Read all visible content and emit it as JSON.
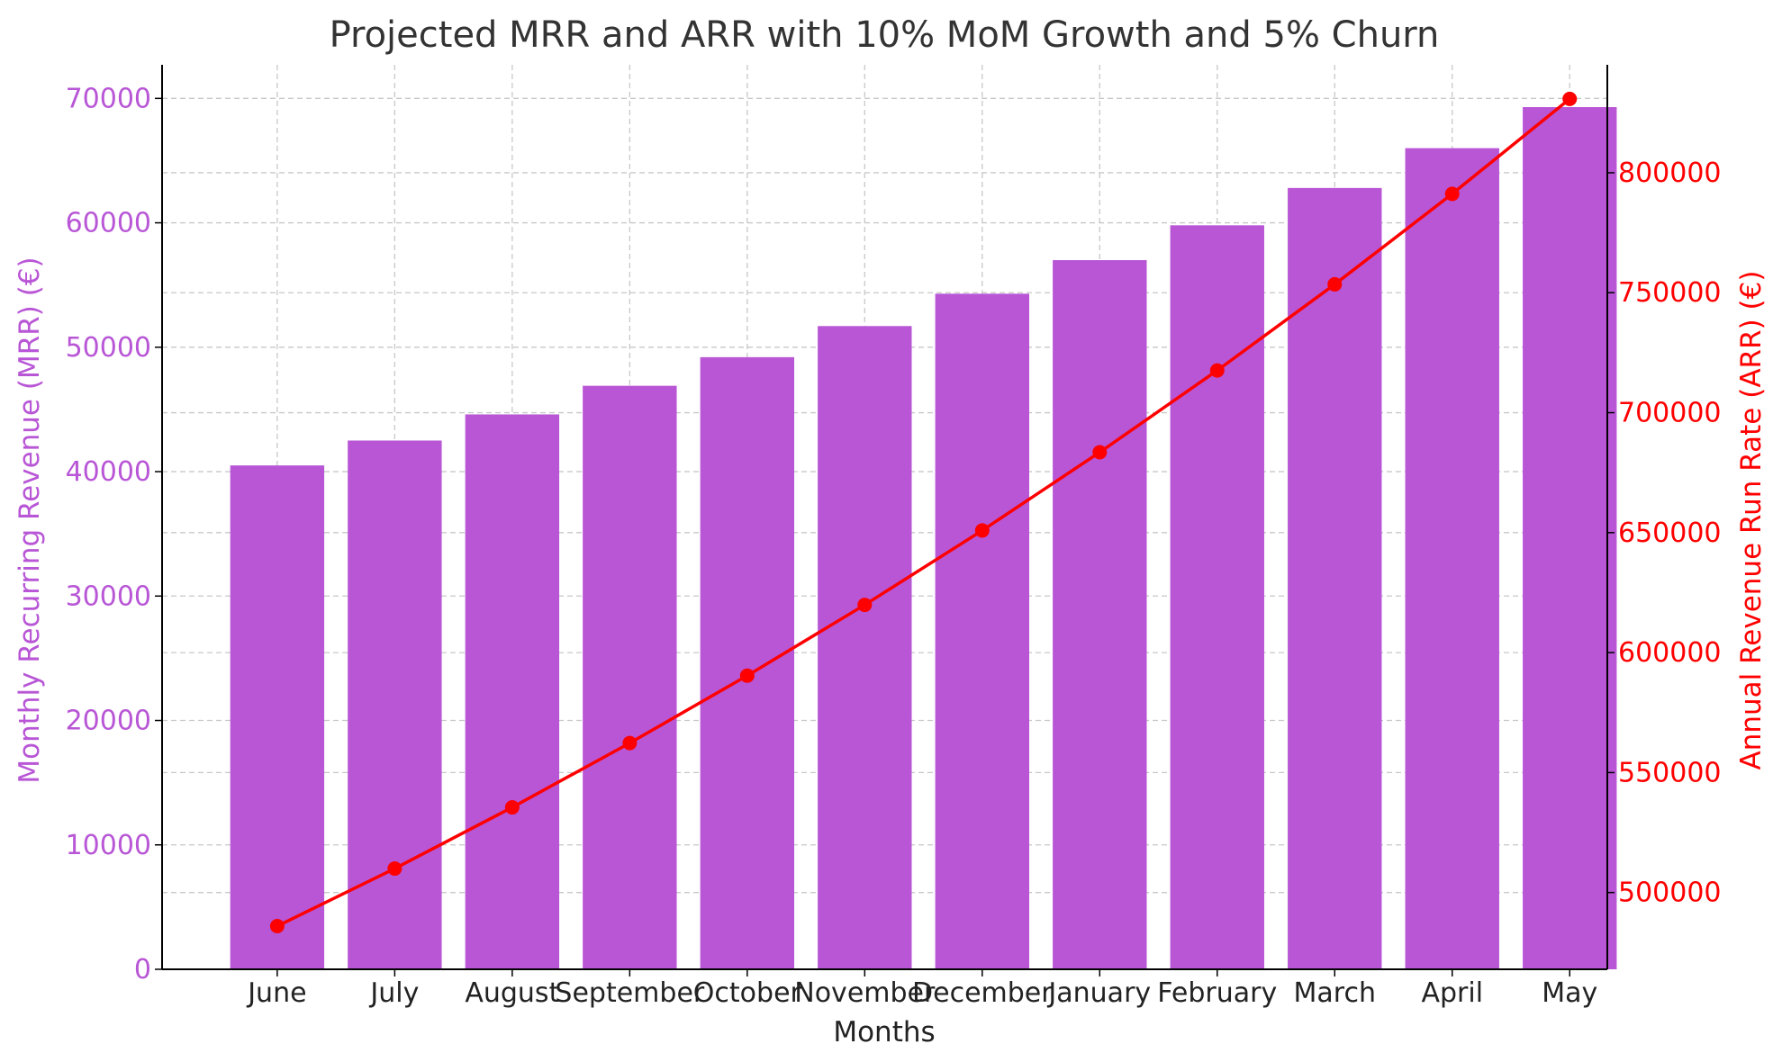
{
  "chart_data": {
    "type": "bar",
    "title": "Projected MRR and ARR with 10% MoM Growth and 5% Churn",
    "xlabel": "Months",
    "categories": [
      "June",
      "July",
      "August",
      "September",
      "October",
      "November",
      "December",
      "January",
      "February",
      "March",
      "April",
      "May"
    ],
    "series": [
      {
        "type": "bar",
        "axis": "left",
        "values": [
          40500,
          42500,
          44600,
          46900,
          49200,
          51700,
          54300,
          57000,
          59800,
          62800,
          66000,
          69300
        ]
      },
      {
        "type": "line",
        "axis": "right",
        "values": [
          486000,
          510000,
          535500,
          562300,
          590400,
          619900,
          650900,
          683500,
          717600,
          753500,
          791200,
          830800
        ]
      }
    ],
    "ylabel": "Monthly Recurring Revenue (MRR) (€)",
    "ylim": [
      0,
      72700
    ],
    "yticks": [
      0,
      10000,
      20000,
      30000,
      40000,
      50000,
      60000,
      70000
    ],
    "y2label": "Annual Revenue Run Rate (ARR) (€)",
    "y2lim": [
      468000,
      845000
    ],
    "y2ticks": [
      500000,
      550000,
      600000,
      650000,
      700000,
      750000,
      800000
    ],
    "grid": true,
    "colors": {
      "bar": "#b856d6",
      "line": "#ff0000",
      "left_axis": "#b856d6",
      "right_axis": "#ff0000",
      "title": "#333333"
    }
  }
}
